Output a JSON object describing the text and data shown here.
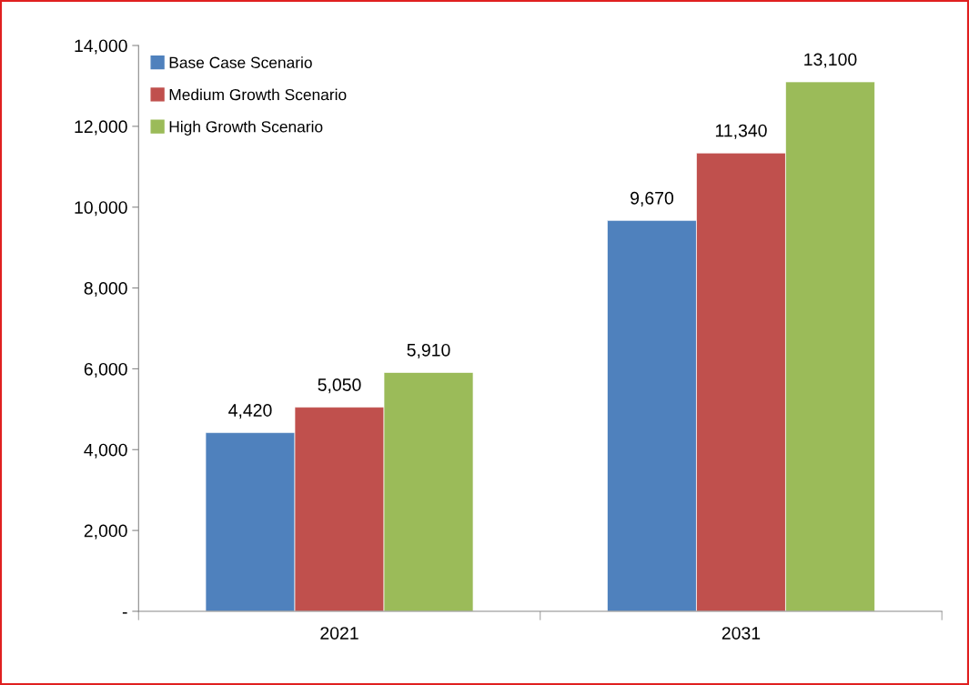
{
  "chart_data": {
    "type": "bar",
    "categories": [
      "2021",
      "2031"
    ],
    "series": [
      {
        "name": "Base Case Scenario",
        "color": "#4f81bd",
        "values": [
          4420,
          9670
        ],
        "value_labels": [
          "4,420",
          "9,670"
        ]
      },
      {
        "name": "Medium Growth Scenario",
        "color": "#c0504d",
        "values": [
          5050,
          11340
        ],
        "value_labels": [
          "5,050",
          "11,340"
        ]
      },
      {
        "name": "High Growth Scenario",
        "color": "#9bbb59",
        "values": [
          5910,
          13100
        ],
        "value_labels": [
          "5,910",
          "13,100"
        ]
      }
    ],
    "ylim": [
      0,
      14000
    ],
    "yticks": [
      {
        "value": 0,
        "label": "-"
      },
      {
        "value": 2000,
        "label": "2,000"
      },
      {
        "value": 4000,
        "label": "4,000"
      },
      {
        "value": 6000,
        "label": "6,000"
      },
      {
        "value": 8000,
        "label": "8,000"
      },
      {
        "value": 10000,
        "label": "10,000"
      },
      {
        "value": 12000,
        "label": "12,000"
      },
      {
        "value": 14000,
        "label": "14,000"
      }
    ],
    "grid": false,
    "legend": "top left"
  }
}
